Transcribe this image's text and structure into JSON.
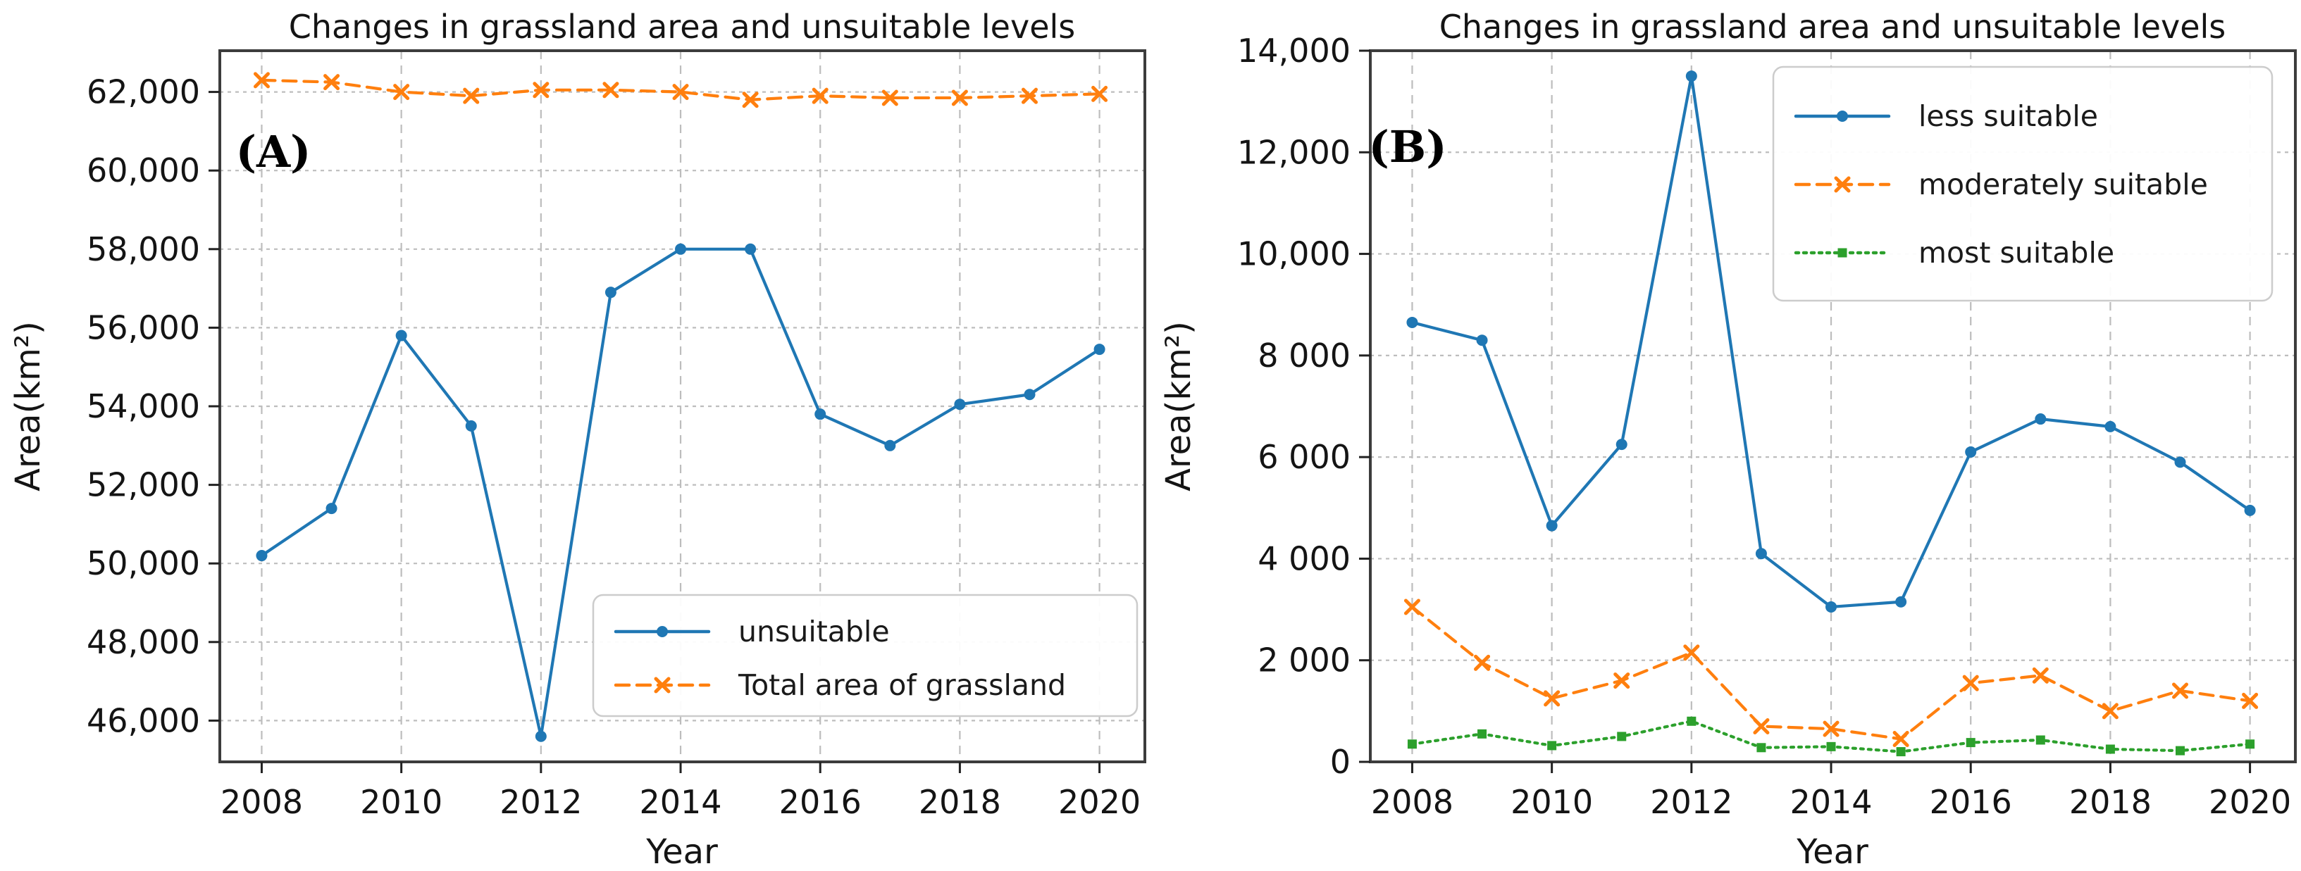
{
  "page": {
    "background": "#ffffff"
  },
  "chart_data": [
    {
      "type": "line",
      "panel_label": "(A)",
      "title": "Changes in grassland area and unsuitable levels",
      "xlabel": "Year",
      "ylabel": "Area(km²)",
      "x": [
        2008,
        2009,
        2010,
        2011,
        2012,
        2013,
        2014,
        2015,
        2016,
        2017,
        2018,
        2019,
        2020
      ],
      "xlim": [
        2007.4,
        2020.65
      ],
      "ylim": [
        44950,
        63050
      ],
      "x_tick_values": [
        2008,
        2010,
        2012,
        2014,
        2016,
        2018,
        2020
      ],
      "x_tick_labels": [
        "2008",
        "2010",
        "2012",
        "2014",
        "2016",
        "2018",
        "2020"
      ],
      "y_tick_values": [
        46000,
        48000,
        50000,
        52000,
        54000,
        56000,
        58000,
        60000,
        62000
      ],
      "y_tick_labels": [
        "46,000",
        "48,000",
        "50,000",
        "52,000",
        "54,000",
        "56,000",
        "58,000",
        "60,000",
        "62,000"
      ],
      "grid": true,
      "legend_position": "lower right",
      "series": [
        {
          "name": "unsuitable",
          "color": "#1f77b4",
          "linestyle": "solid",
          "marker": "circle",
          "values": [
            50200,
            51400,
            55800,
            53500,
            45600,
            56900,
            58000,
            58000,
            53800,
            53000,
            54050,
            54300,
            55450
          ]
        },
        {
          "name": "Total area of grassland",
          "color": "#ff7f0e",
          "linestyle": "dashed",
          "marker": "x",
          "values": [
            62300,
            62250,
            62000,
            61900,
            62050,
            62050,
            62000,
            61800,
            61900,
            61850,
            61850,
            61900,
            61950
          ]
        }
      ]
    },
    {
      "type": "line",
      "panel_label": "(B)",
      "title": "Changes in grassland area and unsuitable levels",
      "xlabel": "Year",
      "ylabel": "Area(km²)",
      "x": [
        2008,
        2009,
        2010,
        2011,
        2012,
        2013,
        2014,
        2015,
        2016,
        2017,
        2018,
        2019,
        2020
      ],
      "xlim": [
        2007.4,
        2020.65
      ],
      "ylim": [
        0,
        14000
      ],
      "x_tick_values": [
        2008,
        2010,
        2012,
        2014,
        2016,
        2018,
        2020
      ],
      "x_tick_labels": [
        "2008",
        "2010",
        "2012",
        "2014",
        "2016",
        "2018",
        "2020"
      ],
      "y_tick_values": [
        0,
        2000,
        4000,
        6000,
        8000,
        10000,
        12000,
        14000
      ],
      "y_tick_labels": [
        "0",
        "2 000",
        "4 000",
        "6 000",
        "8 000",
        "10,000",
        "12,000",
        "14,000"
      ],
      "grid": true,
      "legend_position": "upper right",
      "series": [
        {
          "name": "less suitable",
          "color": "#1f77b4",
          "linestyle": "solid",
          "marker": "circle",
          "values": [
            8650,
            8300,
            4650,
            6250,
            13500,
            4100,
            3050,
            3150,
            6100,
            6750,
            6600,
            5900,
            4950
          ]
        },
        {
          "name": "moderately suitable",
          "color": "#ff7f0e",
          "linestyle": "dashed",
          "marker": "x",
          "values": [
            3050,
            1950,
            1250,
            1600,
            2150,
            700,
            650,
            450,
            1550,
            1700,
            1000,
            1400,
            1200
          ]
        },
        {
          "name": "most suitable",
          "color": "#2ca02c",
          "linestyle": "dotted",
          "marker": "square",
          "values": [
            350,
            550,
            320,
            500,
            800,
            280,
            300,
            200,
            380,
            430,
            250,
            220,
            350
          ]
        }
      ]
    }
  ]
}
